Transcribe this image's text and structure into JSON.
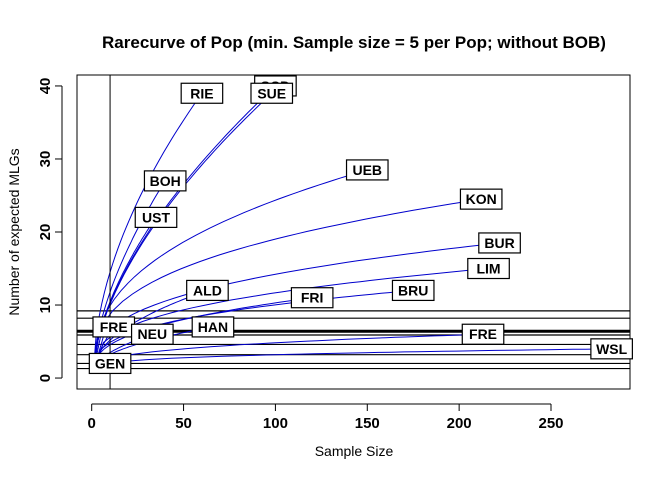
{
  "chart_data": {
    "type": "line",
    "title": "Rarecurve of Pop  (min. Sample size = 5 per Pop; without BOB)",
    "xlabel": "Sample Size",
    "ylabel": "Number of expected MLGs",
    "xlim": [
      -8,
      293
    ],
    "ylim": [
      -1.5,
      41.5
    ],
    "x_ticks": [
      0,
      50,
      100,
      150,
      200,
      250
    ],
    "y_ticks": [
      0,
      10,
      20,
      30,
      40
    ],
    "grid": false,
    "vline": 10,
    "curve_color": "#0000cc",
    "series": [
      {
        "name": "RIE",
        "n": 60,
        "s": 39,
        "shape": 0.55
      },
      {
        "name": "SCD",
        "n": 100,
        "s": 40,
        "shape": 0.6
      },
      {
        "name": "SUE",
        "n": 98,
        "s": 39,
        "shape": 0.6
      },
      {
        "name": "BOH",
        "n": 40,
        "s": 27,
        "shape": 0.6
      },
      {
        "name": "UST",
        "n": 35,
        "s": 22,
        "shape": 0.6
      },
      {
        "name": "UEB",
        "n": 150,
        "s": 28.5,
        "shape": 0.4
      },
      {
        "name": "KON",
        "n": 212,
        "s": 24.5,
        "shape": 0.35
      },
      {
        "name": "BUR",
        "n": 222,
        "s": 18.5,
        "shape": 0.35
      },
      {
        "name": "LIM",
        "n": 216,
        "s": 15,
        "shape": 0.35
      },
      {
        "name": "BRU",
        "n": 175,
        "s": 12,
        "shape": 0.35
      },
      {
        "name": "FRI",
        "n": 120,
        "s": 11,
        "shape": 0.4
      },
      {
        "name": "ALD",
        "n": 63,
        "s": 12,
        "shape": 0.5
      },
      {
        "name": "HAN",
        "n": 66,
        "s": 7,
        "shape": 0.5
      },
      {
        "name": "FRE",
        "n": 12,
        "s": 7,
        "shape": 0.7
      },
      {
        "name": "FRE",
        "n": 213,
        "s": 6,
        "shape": 0.35
      },
      {
        "name": "NEU",
        "n": 33,
        "s": 6,
        "shape": 0.55
      },
      {
        "name": "WSL",
        "n": 283,
        "s": 4,
        "shape": 0.3
      },
      {
        "name": "GEN",
        "n": 10,
        "s": 2,
        "shape": 0.7
      }
    ],
    "hlines": [
      9.2,
      8.2,
      6.4,
      5.9,
      4.6,
      3.2,
      2.0,
      1.3
    ]
  }
}
